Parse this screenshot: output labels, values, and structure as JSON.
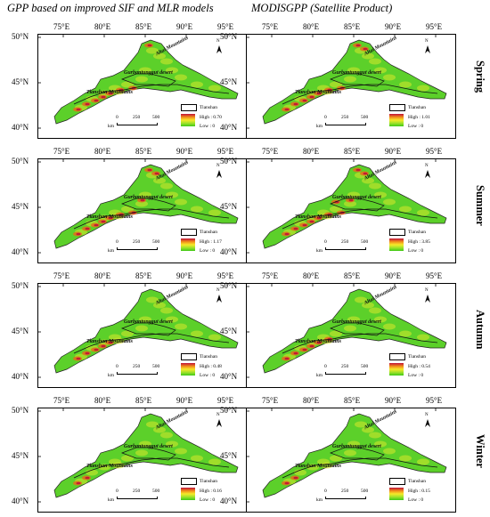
{
  "titles": {
    "left": "GPP based on improved SIF and MLR models",
    "right": "MODISGPP (Satellite Product)"
  },
  "lon_ticks": [
    "75°E",
    "80°E",
    "85°E",
    "90°E",
    "95°E"
  ],
  "lat_ticks": [
    "50°N",
    "45°N",
    "40°N"
  ],
  "place_labels": {
    "altai": "Altai Mountains",
    "gurbantunggut": "Gurbantunggut desert",
    "tianshan": "Tianshan Mountains"
  },
  "north_label": "N",
  "scale": {
    "ticks": [
      "0",
      "250",
      "500"
    ],
    "unit": "km"
  },
  "legend": {
    "boundary": "Tianshan",
    "low": "Low : 0"
  },
  "rows": [
    {
      "season": "Spring",
      "left_high": "High : 0.70",
      "right_high": "High : 1.01"
    },
    {
      "season": "Summer",
      "left_high": "High : 1.17",
      "right_high": "High : 3.85"
    },
    {
      "season": "Autumn",
      "left_high": "High : 0.48",
      "right_high": "High : 0.54"
    },
    {
      "season": "Winter",
      "left_high": "High : 0.16",
      "right_high": "High : 0.15"
    }
  ],
  "colors": {
    "high": "#c0103a",
    "mid": "#f6ea2a",
    "low": "#3ec818",
    "boundary": "#111111"
  }
}
